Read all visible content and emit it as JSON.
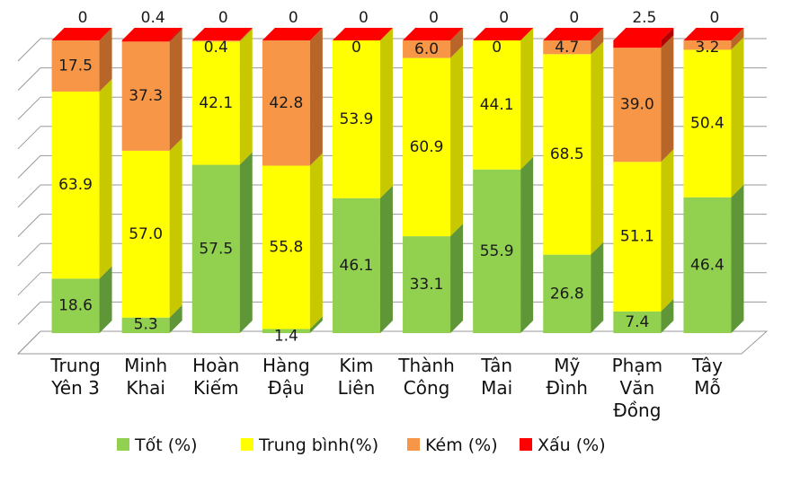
{
  "chart_data": {
    "type": "bar",
    "stacked": true,
    "percent_stacked": true,
    "three_d": true,
    "grid": true,
    "legend_position": "bottom",
    "categories": [
      [
        "Trung",
        "Yên 3"
      ],
      [
        "Minh",
        "Khai"
      ],
      [
        "Hoàn",
        "Kiếm"
      ],
      [
        "Hàng",
        "Đậu"
      ],
      [
        "Kim",
        "Liên"
      ],
      [
        "Thành",
        "Công"
      ],
      [
        "Tân",
        "Mai"
      ],
      [
        "Mỹ",
        "Đình"
      ],
      [
        "Phạm",
        "Văn",
        "Đồng"
      ],
      [
        "Tây",
        "Mỗ"
      ]
    ],
    "series": [
      {
        "name": "Tốt (%)",
        "color": "#92d050",
        "side": "#5f9638",
        "top": "#b6e08a",
        "values": [
          18.6,
          5.3,
          57.5,
          1.4,
          46.1,
          33.1,
          55.9,
          26.8,
          7.4,
          46.4
        ],
        "labels": [
          "18.6",
          "5.3",
          "57.5",
          "1.4",
          "46.1",
          "33.1",
          "55.9",
          "26.8",
          "7.4",
          "46.4"
        ]
      },
      {
        "name": "Trung bình(%)",
        "color": "#ffff00",
        "side": "#c8c800",
        "top": "#ffff80",
        "values": [
          63.9,
          57.0,
          42.1,
          55.8,
          53.9,
          60.9,
          44.1,
          68.5,
          51.1,
          50.4
        ],
        "labels": [
          "63.9",
          "57.0",
          "42.1",
          "55.8",
          "53.9",
          "60.9",
          "44.1",
          "68.5",
          "51.1",
          "50.4"
        ]
      },
      {
        "name": "Kém (%)",
        "color": "#f79646",
        "side": "#b8652a",
        "top": "#fab67c",
        "values": [
          17.5,
          37.3,
          0.4,
          42.8,
          0,
          6.0,
          0,
          4.7,
          39.0,
          3.2
        ],
        "labels": [
          "17.5",
          "37.3",
          "0.4",
          "42.8",
          "0",
          "6.0",
          "0",
          "4.7",
          "39.0",
          "3.2"
        ]
      },
      {
        "name": "Xấu (%)",
        "color": "#ff0000",
        "side": "#b00000",
        "top": "#ff5050",
        "values": [
          0,
          0.4,
          0,
          0,
          0,
          0,
          0,
          0,
          2.5,
          0
        ],
        "labels": [
          "0",
          "0.4",
          "0",
          "0",
          "0",
          "0",
          "0",
          "0",
          "2.5",
          "0"
        ]
      }
    ]
  }
}
